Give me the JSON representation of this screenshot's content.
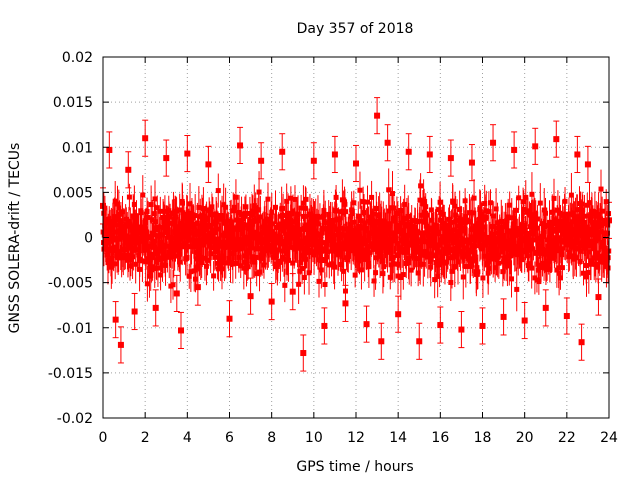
{
  "chart_data": {
    "type": "scatter",
    "title": "Day 357 of 2018",
    "xlabel": "GPS time / hours",
    "ylabel": "GNSS SOLERA-drift / TECUs",
    "xlim": [
      0,
      24
    ],
    "ylim": [
      -0.02,
      0.02
    ],
    "xticks": [
      0,
      2,
      4,
      6,
      8,
      10,
      12,
      14,
      16,
      18,
      20,
      22,
      24
    ],
    "xtick_labels": [
      "0",
      "2",
      "4",
      "6",
      "8",
      "10",
      "12",
      "14",
      "16",
      "18",
      "20",
      "22",
      "24"
    ],
    "yticks": [
      -0.02,
      -0.015,
      -0.01,
      -0.005,
      0,
      0.005,
      0.01,
      0.015,
      0.02
    ],
    "ytick_labels": [
      "-0.02",
      "-0.015",
      "-0.01",
      "-0.005",
      "0",
      "0.005",
      "0.01",
      "0.015",
      "0.02"
    ],
    "grid": true,
    "marker_color": "#ff0000",
    "series": [
      {
        "name": "SOLERA drift",
        "note": "dense red square markers with error bars across 0–24 h, values mostly within ±0.01 TECU",
        "x": [
          0.0,
          0.3,
          0.6,
          0.85,
          1.2,
          1.5,
          2.0,
          2.5,
          3.0,
          3.5,
          3.7,
          4.0,
          4.5,
          5.0,
          6.0,
          6.5,
          7.0,
          7.5,
          8.0,
          8.5,
          9.0,
          9.5,
          10.0,
          10.5,
          11.0,
          11.5,
          12.0,
          12.5,
          13.0,
          13.2,
          13.5,
          14.0,
          14.5,
          15.0,
          15.5,
          16.0,
          16.5,
          17.0,
          17.5,
          18.0,
          18.5,
          19.0,
          19.5,
          20.0,
          20.5,
          21.0,
          21.5,
          22.0,
          22.5,
          22.7,
          23.0,
          23.5,
          24.0
        ],
        "y": [
          0.0035,
          0.0097,
          -0.0091,
          -0.0119,
          0.0075,
          -0.0082,
          0.011,
          -0.0078,
          0.0088,
          -0.0062,
          -0.0103,
          0.0093,
          -0.0055,
          0.0081,
          -0.009,
          0.0102,
          -0.0065,
          0.0085,
          -0.0071,
          0.0095,
          -0.006,
          -0.0128,
          0.0085,
          -0.0098,
          0.0092,
          -0.0073,
          0.0082,
          -0.0096,
          0.0135,
          -0.0115,
          0.0105,
          -0.0085,
          0.0095,
          -0.0115,
          0.0092,
          -0.0097,
          0.0088,
          -0.0102,
          0.0083,
          -0.0098,
          0.0105,
          -0.0088,
          0.0097,
          -0.0092,
          0.0101,
          -0.0078,
          0.0109,
          -0.0087,
          0.0092,
          -0.0116,
          0.0081,
          -0.0066,
          0.0019
        ],
        "error": 0.002
      }
    ]
  }
}
